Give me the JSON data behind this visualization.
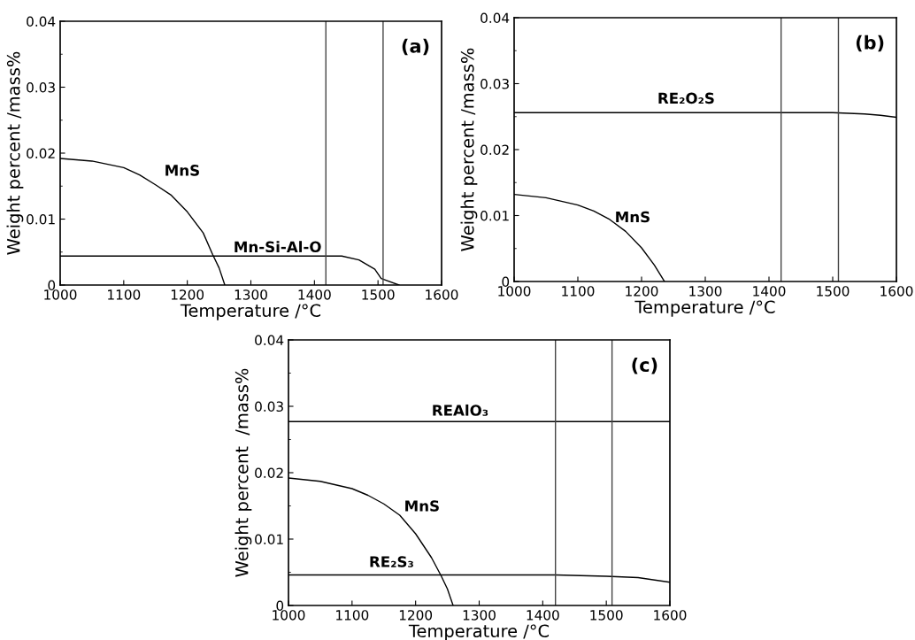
{
  "chart_data": [
    {
      "type": "line",
      "xlabel": "Temperature /°C",
      "ylabel": "Weight percent /mass%",
      "annotations": [
        "(a)"
      ],
      "xlim": [
        1000,
        1600
      ],
      "ylim": [
        0,
        0.04
      ],
      "xticks": [
        1000,
        1100,
        1200,
        1300,
        1400,
        1500,
        1600
      ],
      "yticks": [
        0,
        0.01,
        0.02,
        0.03,
        0.04
      ],
      "grid": false,
      "legend": false,
      "marker": "none",
      "line_style": "solid",
      "ref_lines": [
        {
          "axis": "x",
          "value": 1418,
          "color": "#444444"
        },
        {
          "axis": "x",
          "value": 1508,
          "color": "#444444"
        }
      ],
      "series": [
        {
          "name": "MnS",
          "color": "#000000",
          "x": [
            1000,
            1050,
            1100,
            1125,
            1150,
            1175,
            1200,
            1225,
            1240,
            1250,
            1259
          ],
          "values": [
            0.0192,
            0.0188,
            0.0178,
            0.0167,
            0.0152,
            0.0136,
            0.0111,
            0.0079,
            0.0046,
            0.0026,
            0
          ]
        },
        {
          "name": "Mn-Si-Al-O",
          "color": "#000000",
          "x": [
            1000,
            1443,
            1470,
            1495,
            1505,
            1533
          ],
          "values": [
            0.0044,
            0.0044,
            0.0038,
            0.0024,
            0.001,
            0
          ]
        }
      ]
    },
    {
      "type": "line",
      "xlabel": "Temperature /°C",
      "ylabel": "Weight percent /mass%",
      "annotations": [
        "(b)"
      ],
      "xlim": [
        1000,
        1600
      ],
      "ylim": [
        0,
        0.04
      ],
      "xticks": [
        1000,
        1100,
        1200,
        1300,
        1400,
        1500,
        1600
      ],
      "yticks": [
        0,
        0.01,
        0.02,
        0.03,
        0.04
      ],
      "grid": false,
      "legend": false,
      "marker": "none",
      "line_style": "solid",
      "ref_lines": [
        {
          "axis": "x",
          "value": 1419,
          "color": "#444444"
        },
        {
          "axis": "x",
          "value": 1509,
          "color": "#444444"
        }
      ],
      "series": [
        {
          "name": "MnS",
          "color": "#000000",
          "x": [
            1000,
            1050,
            1100,
            1125,
            1150,
            1175,
            1200,
            1220,
            1236
          ],
          "values": [
            0.0132,
            0.0127,
            0.0116,
            0.0107,
            0.0094,
            0.0076,
            0.0051,
            0.0025,
            0
          ]
        },
        {
          "name": "RE₂O₂S",
          "color": "#000000",
          "x": [
            1000,
            1500,
            1550,
            1575,
            1600
          ],
          "values": [
            0.0256,
            0.0256,
            0.0254,
            0.0252,
            0.0249
          ]
        }
      ]
    },
    {
      "type": "line",
      "xlabel": "Temperature /°C",
      "ylabel": "Weight percent  /mass%",
      "annotations": [
        "(c)"
      ],
      "xlim": [
        1000,
        1600
      ],
      "ylim": [
        0,
        0.04
      ],
      "xticks": [
        1000,
        1100,
        1200,
        1300,
        1400,
        1500,
        1600
      ],
      "yticks": [
        0,
        0.01,
        0.02,
        0.03,
        0.04
      ],
      "grid": false,
      "legend": false,
      "marker": "none",
      "line_style": "solid",
      "ref_lines": [
        {
          "axis": "x",
          "value": 1420,
          "color": "#444444"
        },
        {
          "axis": "x",
          "value": 1509,
          "color": "#444444"
        }
      ],
      "series": [
        {
          "name": "REAlO₃",
          "color": "#000000",
          "x": [
            1000,
            1600
          ],
          "values": [
            0.0277,
            0.0277
          ]
        },
        {
          "name": "MnS",
          "color": "#000000",
          "x": [
            1000,
            1050,
            1100,
            1125,
            1150,
            1175,
            1200,
            1225,
            1240,
            1250,
            1259
          ],
          "values": [
            0.0192,
            0.0187,
            0.0176,
            0.0166,
            0.0153,
            0.0136,
            0.0108,
            0.0072,
            0.0045,
            0.0025,
            0
          ]
        },
        {
          "name": "RE₂S₃",
          "color": "#000000",
          "x": [
            1000,
            1420,
            1500,
            1550,
            1600
          ],
          "values": [
            0.0046,
            0.0046,
            0.0044,
            0.0042,
            0.0035
          ]
        }
      ]
    }
  ]
}
